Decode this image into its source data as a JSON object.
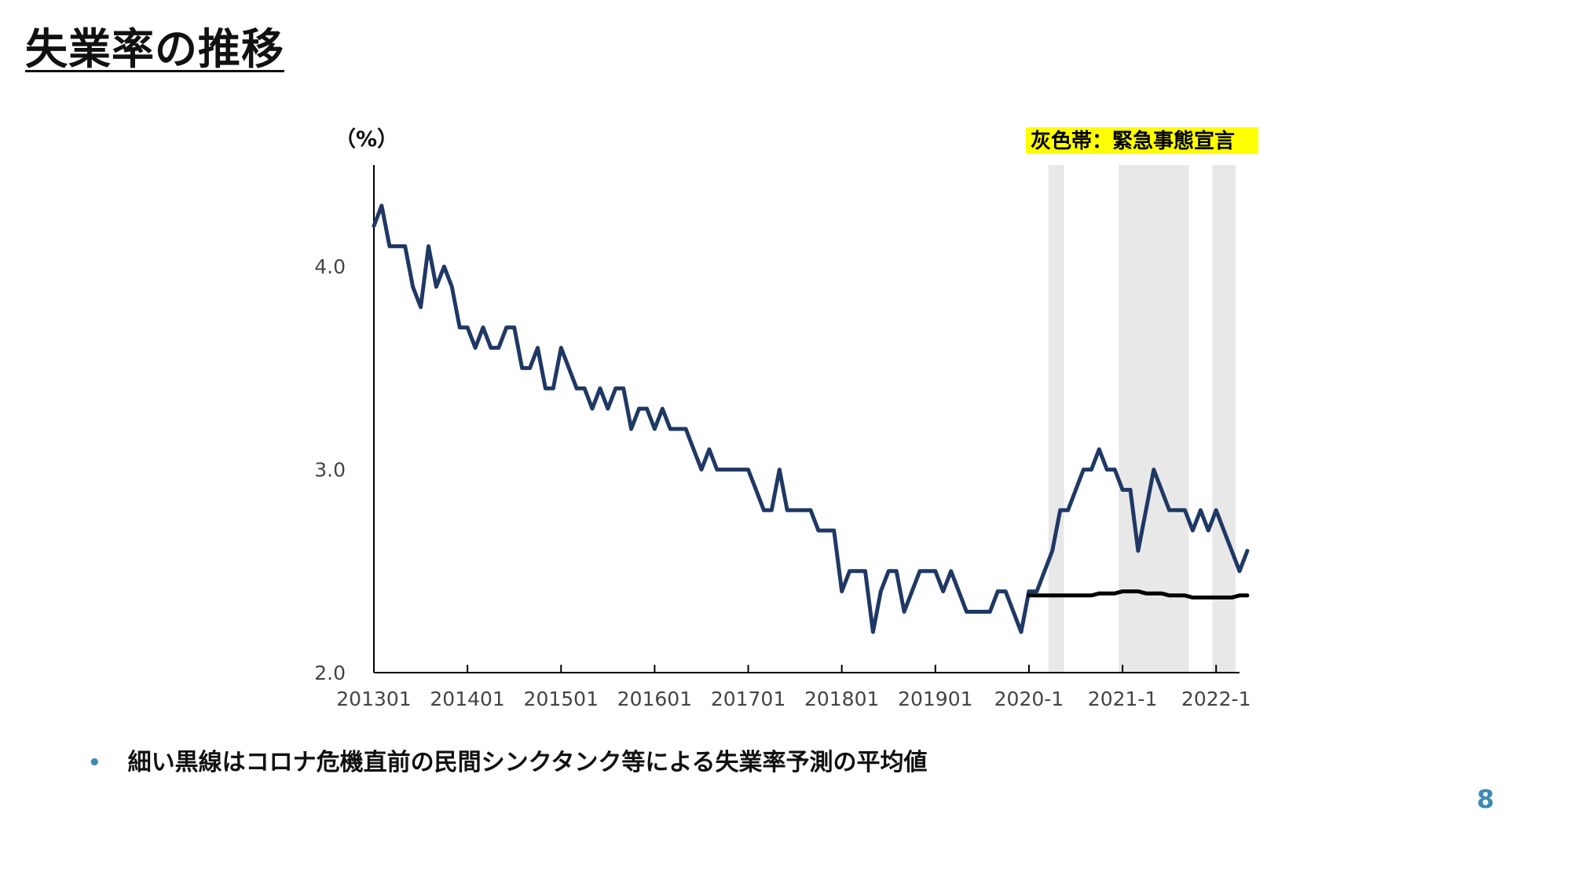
{
  "slide": {
    "title": "失業率の推移",
    "note": "細い黒線はコロナ危機直前の民間シンクタンク等による失業率予測の平均値",
    "page_number": "8",
    "accent_color": "#3d8bb5"
  },
  "chart_data": {
    "type": "line",
    "title": "",
    "y_unit_label": "（%）",
    "legend_note": "灰色帯：緊急事態宣言",
    "legend_note_bg": "#ffff00",
    "ylim": [
      2.0,
      4.5
    ],
    "y_ticks": [
      "2.0",
      "3.0",
      "4.0"
    ],
    "y_tick_values": [
      2.0,
      3.0,
      4.0
    ],
    "x_range": [
      "2013-01",
      "2022-04"
    ],
    "x_tick_labels": [
      "201301",
      "201401",
      "201501",
      "201601",
      "201701",
      "201801",
      "201901",
      "2020-1",
      "2021-1",
      "2022-1"
    ],
    "x_tick_dates": [
      "2013-01",
      "2014-01",
      "2015-01",
      "2016-01",
      "2017-01",
      "2018-01",
      "2019-01",
      "2020-01",
      "2021-01",
      "2022-01"
    ],
    "emergency_bands": [
      {
        "start": "2020-04",
        "end": "2020-05"
      },
      {
        "start": "2021-01",
        "end": "2021-03"
      },
      {
        "start": "2021-04",
        "end": "2021-09"
      },
      {
        "start": "2022-01",
        "end": "2022-03"
      }
    ],
    "series": [
      {
        "name": "",
        "color": "#1f3864",
        "start": "2013-01",
        "frequency": "monthly",
        "values": [
          4.2,
          4.3,
          4.1,
          4.1,
          4.1,
          3.9,
          3.8,
          4.1,
          3.9,
          4.0,
          3.9,
          3.7,
          3.7,
          3.6,
          3.7,
          3.6,
          3.6,
          3.7,
          3.7,
          3.5,
          3.5,
          3.6,
          3.4,
          3.4,
          3.6,
          3.5,
          3.4,
          3.4,
          3.3,
          3.4,
          3.3,
          3.4,
          3.4,
          3.2,
          3.3,
          3.3,
          3.2,
          3.3,
          3.2,
          3.2,
          3.2,
          3.1,
          3.0,
          3.1,
          3.0,
          3.0,
          3.0,
          3.0,
          3.0,
          2.9,
          2.8,
          2.8,
          3.0,
          2.8,
          2.8,
          2.8,
          2.8,
          2.7,
          2.7,
          2.7,
          2.4,
          2.5,
          2.5,
          2.5,
          2.2,
          2.4,
          2.5,
          2.5,
          2.3,
          2.4,
          2.5,
          2.5,
          2.5,
          2.4,
          2.5,
          2.4,
          2.3,
          2.3,
          2.3,
          2.3,
          2.4,
          2.4,
          2.3,
          2.2,
          2.4,
          2.4,
          2.5,
          2.6,
          2.8,
          2.8,
          2.9,
          3.0,
          3.0,
          3.1,
          3.0,
          3.0,
          2.9,
          2.9,
          2.6,
          2.8,
          3.0,
          2.9,
          2.8,
          2.8,
          2.8,
          2.7,
          2.8,
          2.7,
          2.8,
          2.7,
          2.6,
          2.5,
          2.6
        ]
      },
      {
        "name": "",
        "color": "#000000",
        "start": "2020-01",
        "frequency": "monthly",
        "values": [
          2.38,
          2.38,
          2.38,
          2.38,
          2.38,
          2.38,
          2.38,
          2.38,
          2.38,
          2.39,
          2.39,
          2.39,
          2.4,
          2.4,
          2.4,
          2.39,
          2.39,
          2.39,
          2.38,
          2.38,
          2.38,
          2.37,
          2.37,
          2.37,
          2.37,
          2.37,
          2.37,
          2.38,
          2.38
        ]
      }
    ]
  }
}
